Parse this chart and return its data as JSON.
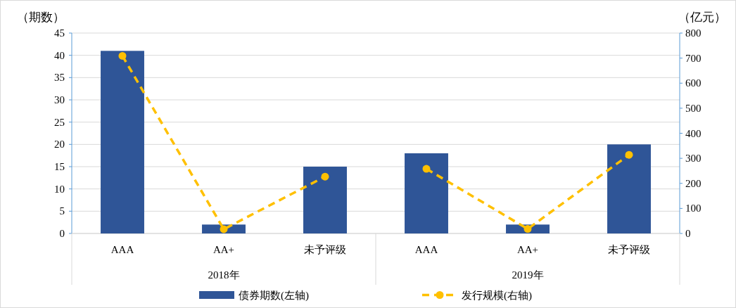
{
  "chart_data": {
    "type": "bar",
    "ylabel": "（期数）",
    "y2label": "（亿元）",
    "categories": [
      "AAA",
      "AA+",
      "未予评级",
      "AAA",
      "AA+",
      "未予评级"
    ],
    "annotations": [
      "2018年",
      "2019年"
    ],
    "series": [
      {
        "name": "债券期数(左轴)",
        "color": "#2f5597",
        "values": [
          41,
          2,
          15,
          18,
          2,
          20
        ]
      },
      {
        "name": "发行规模(右轴)",
        "type": "line",
        "axis": "y2",
        "color": "#ffc000",
        "line_style": "dashed",
        "marker": "circle",
        "values": [
          709,
          17,
          227,
          null,
          null,
          null
        ]
      },
      {
        "type": "line",
        "axis": "y2",
        "color": "#ffc000",
        "line_style": "dashed",
        "marker": "circle",
        "values": [
          null,
          null,
          null,
          258,
          18,
          314
        ]
      }
    ],
    "ylim": [
      0,
      45
    ],
    "yticks": [
      0,
      5,
      10,
      15,
      20,
      25,
      30,
      35,
      40,
      45
    ],
    "y2lim": [
      0,
      800
    ],
    "y2ticks": [
      0,
      100,
      200,
      300,
      400,
      500,
      600,
      700,
      800
    ],
    "grid": "y",
    "legend": "bottom"
  }
}
